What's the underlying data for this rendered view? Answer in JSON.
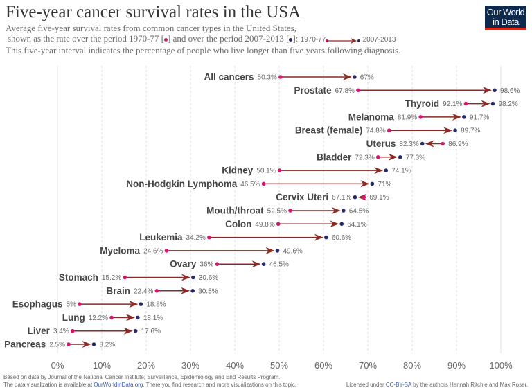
{
  "header": {
    "title": "Five-year cancer survival rates in the USA",
    "subtitle_line1": "Average five-year survival rates from common cancer types in the United States,",
    "subtitle_line2_a": "shown as the rate over the period 1970-77 [",
    "subtitle_line2_b": "] and over the period 2007-2013 [",
    "subtitle_line2_c": "]:",
    "legend_start": "1970-77",
    "legend_end": "2007-2013",
    "subtitle_line3": "This five-year interval indicates the percentage of people who live longer than five years following diagnosis."
  },
  "logo": {
    "line1": "Our World",
    "line2": "in Data"
  },
  "footer": {
    "source_line": "Based on data by Journal of the National Cancer Institute; Surveillance, Epidemiology and End Results Program.",
    "avail_a": "The data visualization is available at ",
    "avail_link": "OurWorldinData.org",
    "avail_b": ". There you find research and more visualizations on this topic.",
    "license_a": "Licensed under ",
    "license_link": "CC-BY-SA",
    "license_b": " by the authors Hannah Ritchie and Max Roser."
  },
  "colors": {
    "start_dot": "#d6166f",
    "end_dot": "#272a6b",
    "arrow": "#8c2a25",
    "grid": "#dddddd"
  },
  "chart_data": {
    "type": "arrow-dumbbell",
    "xlim": [
      0,
      100
    ],
    "x_ticks": [
      0,
      10,
      20,
      30,
      40,
      50,
      60,
      70,
      80,
      90,
      100
    ],
    "x_tick_labels": [
      "0%",
      "10%",
      "20%",
      "30%",
      "40%",
      "50%",
      "60%",
      "70%",
      "80%",
      "90%",
      "100%"
    ],
    "grid": true,
    "series_names": [
      "1970-77",
      "2007-2013"
    ],
    "rows": [
      {
        "name": "All cancers",
        "start": 50.3,
        "end": 67,
        "start_label": "50.3%",
        "end_label": "67%"
      },
      {
        "name": "Prostate",
        "start": 67.8,
        "end": 98.6,
        "start_label": "67.8%",
        "end_label": "98.6%"
      },
      {
        "name": "Thyroid",
        "start": 92.1,
        "end": 98.2,
        "start_label": "92.1%",
        "end_label": "98.2%"
      },
      {
        "name": "Melanoma",
        "start": 81.9,
        "end": 91.7,
        "start_label": "81.9%",
        "end_label": "91.7%"
      },
      {
        "name": "Breast (female)",
        "start": 74.8,
        "end": 89.7,
        "start_label": "74.8%",
        "end_label": "89.7%"
      },
      {
        "name": "Uterus",
        "start": 86.9,
        "end": 82.3,
        "start_label": "86.9%",
        "end_label": "82.3%"
      },
      {
        "name": "Bladder",
        "start": 72.3,
        "end": 77.3,
        "start_label": "72.3%",
        "end_label": "77.3%"
      },
      {
        "name": "Kidney",
        "start": 50.1,
        "end": 74.1,
        "start_label": "50.1%",
        "end_label": "74.1%"
      },
      {
        "name": "Non-Hodgkin Lymphoma",
        "start": 46.5,
        "end": 71,
        "start_label": "46.5%",
        "end_label": "71%"
      },
      {
        "name": "Cervix Uteri",
        "start": 69.1,
        "end": 67.1,
        "start_label": "69.1%",
        "end_label": "67.1%"
      },
      {
        "name": "Mouth/throat",
        "start": 52.5,
        "end": 64.5,
        "start_label": "52.5%",
        "end_label": "64.5%"
      },
      {
        "name": "Colon",
        "start": 49.8,
        "end": 64.1,
        "start_label": "49.8%",
        "end_label": "64.1%"
      },
      {
        "name": "Leukemia",
        "start": 34.2,
        "end": 60.6,
        "start_label": "34.2%",
        "end_label": "60.6%"
      },
      {
        "name": "Myeloma",
        "start": 24.6,
        "end": 49.6,
        "start_label": "24.6%",
        "end_label": "49.6%"
      },
      {
        "name": "Ovary",
        "start": 36,
        "end": 46.5,
        "start_label": "36%",
        "end_label": "46.5%"
      },
      {
        "name": "Stomach",
        "start": 15.2,
        "end": 30.6,
        "start_label": "15.2%",
        "end_label": "30.6%"
      },
      {
        "name": "Brain",
        "start": 22.4,
        "end": 30.5,
        "start_label": "22.4%",
        "end_label": "30.5%"
      },
      {
        "name": "Esophagus",
        "start": 5,
        "end": 18.8,
        "start_label": "5%",
        "end_label": "18.8%"
      },
      {
        "name": "Lung",
        "start": 12.2,
        "end": 18.1,
        "start_label": "12.2%",
        "end_label": "18.1%"
      },
      {
        "name": "Liver",
        "start": 3.4,
        "end": 17.6,
        "start_label": "3.4%",
        "end_label": "17.6%"
      },
      {
        "name": "Pancreas",
        "start": 2.5,
        "end": 8.2,
        "start_label": "2.5%",
        "end_label": "8.2%"
      }
    ]
  }
}
